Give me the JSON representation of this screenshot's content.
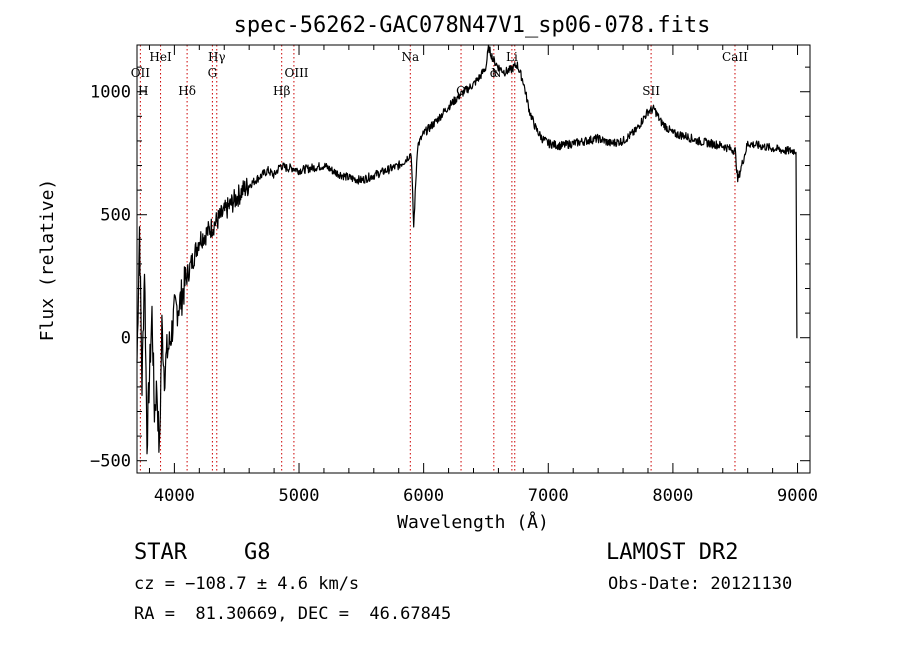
{
  "chart_data": {
    "type": "line",
    "title": "spec-56262-GAC078N47V1_sp06-078.fits",
    "xlabel": "Wavelength (Å)",
    "ylabel": "Flux (relative)",
    "xlim": [
      3700,
      9100
    ],
    "ylim": [
      -550,
      1190
    ],
    "x_ticks": [
      4000,
      5000,
      6000,
      7000,
      8000,
      9000
    ],
    "x_tick_labels": [
      "4000",
      "5000",
      "6000",
      "7000",
      "8000",
      "9000"
    ],
    "y_ticks": [
      -500,
      0,
      500,
      1000
    ],
    "y_tick_labels": [
      "−500",
      "0",
      "500",
      "1000"
    ],
    "grid": false,
    "series": [
      {
        "color": "#000000",
        "x": [
          3700,
          3720,
          3740,
          3760,
          3780,
          3800,
          3820,
          3840,
          3860,
          3880,
          3900,
          3920,
          3940,
          3960,
          3980,
          4000,
          4050,
          4100,
          4150,
          4200,
          4250,
          4300,
          4350,
          4400,
          4450,
          4500,
          4550,
          4600,
          4650,
          4700,
          4750,
          4800,
          4850,
          4900,
          4950,
          5000,
          5100,
          5200,
          5300,
          5400,
          5500,
          5600,
          5700,
          5800,
          5850,
          5900,
          5920,
          5950,
          6000,
          6100,
          6200,
          6300,
          6350,
          6400,
          6450,
          6500,
          6520,
          6560,
          6600,
          6650,
          6700,
          6750,
          6800,
          6850,
          6900,
          6950,
          7000,
          7100,
          7200,
          7300,
          7400,
          7500,
          7600,
          7700,
          7750,
          7800,
          7850,
          7900,
          8000,
          8100,
          8200,
          8300,
          8400,
          8500,
          8520,
          8600,
          8700,
          8800,
          8900,
          9000
        ],
        "y": [
          -100,
          450,
          -200,
          300,
          -420,
          -150,
          100,
          -300,
          -200,
          -480,
          50,
          -150,
          -60,
          -30,
          30,
          100,
          150,
          250,
          320,
          400,
          420,
          450,
          480,
          510,
          540,
          570,
          600,
          620,
          640,
          660,
          680,
          660,
          700,
          690,
          690,
          680,
          690,
          700,
          670,
          650,
          640,
          660,
          680,
          700,
          720,
          750,
          450,
          780,
          830,
          880,
          940,
          990,
          1010,
          1030,
          1060,
          1100,
          1180,
          1130,
          1100,
          1080,
          1090,
          1110,
          1040,
          920,
          850,
          810,
          790,
          780,
          790,
          800,
          810,
          790,
          800,
          840,
          880,
          920,
          930,
          880,
          830,
          820,
          800,
          790,
          780,
          760,
          640,
          790,
          780,
          770,
          760,
          760
        ]
      }
    ],
    "line_labels": [
      {
        "label": "OII",
        "wavelength": 3727,
        "row": 2
      },
      {
        "label": "H",
        "wavelength": 3750,
        "row": 3
      },
      {
        "label": "HeI",
        "wavelength": 3889,
        "row": 1
      },
      {
        "label": "Hδ",
        "wavelength": 4102,
        "row": 3
      },
      {
        "label": "Hγ",
        "wavelength": 4340,
        "row": 1
      },
      {
        "label": "G",
        "wavelength": 4305,
        "row": 2
      },
      {
        "label": "Hβ",
        "wavelength": 4861,
        "row": 3
      },
      {
        "label": "OIII",
        "wavelength": 4980,
        "row": 2
      },
      {
        "label": "Na",
        "wavelength": 5893,
        "row": 1
      },
      {
        "label": "O",
        "wavelength": 6300,
        "row": 3
      },
      {
        "label": "Li",
        "wavelength": 6708,
        "row": 1
      },
      {
        "label": "N",
        "wavelength": 6584,
        "row": 2
      },
      {
        "label": "α",
        "wavelength": 6563,
        "row": 2
      },
      {
        "label": "SII",
        "wavelength": 7825,
        "row": 3
      },
      {
        "label": "CaII",
        "wavelength": 8498,
        "row": 1
      }
    ],
    "line_markers": [
      3727,
      3889,
      4102,
      4305,
      4340,
      4861,
      4959,
      5893,
      6300,
      6563,
      6708,
      6731,
      7825,
      8498
    ],
    "marker_color": "#cc0000"
  },
  "info": {
    "object_class": "STAR",
    "subclass": "G8",
    "survey": "LAMOST DR2",
    "redshift": "cz = −108.7 ± 4.6 km/s",
    "obs_date": "Obs-Date: 20121130",
    "coords": "RA =  81.30669, DEC =  46.67845"
  }
}
